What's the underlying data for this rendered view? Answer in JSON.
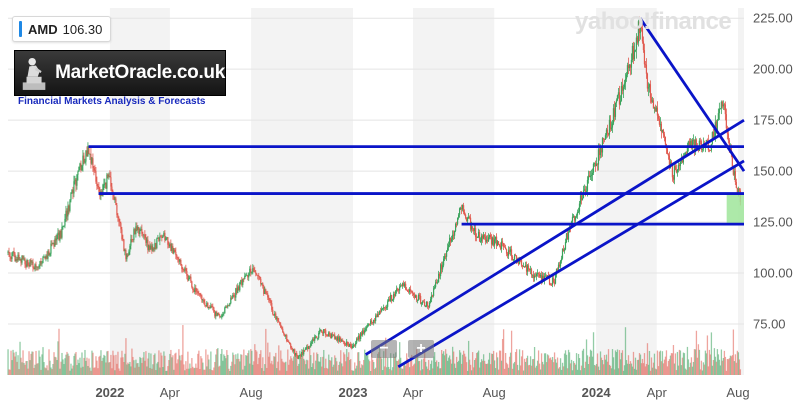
{
  "ticker": {
    "symbol": "AMD",
    "price": "106.30"
  },
  "branding": {
    "logo_text": "MarketOracle.co.uk",
    "tagline": "Financial Markets Analysis & Forecasts",
    "watermark": "yahoo!finance"
  },
  "controls": {
    "zoom_out_icon": "minus-icon",
    "zoom_in_icon": "plus-icon",
    "zoom_out": "−",
    "zoom_in": "+"
  },
  "colors": {
    "up": "#3aa35c",
    "down": "#e05a4f",
    "trendline": "#0a14c8",
    "zone": "#9fe59a",
    "axis_text": "#555555"
  },
  "chart_data": {
    "type": "candlestick",
    "title": "",
    "xlabel": "",
    "ylabel": "",
    "ylim": [
      50,
      230
    ],
    "x_range": [
      "2021-08-01",
      "2024-08-10"
    ],
    "grid": "alternating vertical bands",
    "legend": "none",
    "y_ticks": [
      75,
      100,
      125,
      150,
      175,
      200,
      225
    ],
    "y_tick_labels": [
      "75.00",
      "100.00",
      "125.00",
      "150.00",
      "175.00",
      "200.00",
      "225.00"
    ],
    "x_ticks": [
      {
        "date": "2022-01-01",
        "label": "2022",
        "bold": true
      },
      {
        "date": "2022-04-01",
        "label": "Apr",
        "bold": false
      },
      {
        "date": "2022-08-01",
        "label": "Aug",
        "bold": false
      },
      {
        "date": "2023-01-01",
        "label": "2023",
        "bold": true
      },
      {
        "date": "2023-04-01",
        "label": "Apr",
        "bold": false
      },
      {
        "date": "2023-08-01",
        "label": "Aug",
        "bold": false
      },
      {
        "date": "2024-01-01",
        "label": "2024",
        "bold": true
      },
      {
        "date": "2024-04-01",
        "label": "Apr",
        "bold": false
      },
      {
        "date": "2024-08-01",
        "label": "Aug",
        "bold": false
      }
    ],
    "price_path": [
      [
        "2021-08-01",
        110
      ],
      [
        "2021-09-15",
        102
      ],
      [
        "2021-10-20",
        120
      ],
      [
        "2021-11-15",
        150
      ],
      [
        "2021-11-30",
        162
      ],
      [
        "2021-12-15",
        138
      ],
      [
        "2022-01-01",
        148
      ],
      [
        "2022-01-25",
        108
      ],
      [
        "2022-02-10",
        124
      ],
      [
        "2022-03-01",
        112
      ],
      [
        "2022-03-25",
        118
      ],
      [
        "2022-05-15",
        88
      ],
      [
        "2022-06-15",
        78
      ],
      [
        "2022-07-15",
        94
      ],
      [
        "2022-08-05",
        103
      ],
      [
        "2022-09-15",
        72
      ],
      [
        "2022-10-10",
        58
      ],
      [
        "2022-11-15",
        72
      ],
      [
        "2022-12-30",
        64
      ],
      [
        "2023-01-20",
        73
      ],
      [
        "2023-02-15",
        82
      ],
      [
        "2023-03-15",
        95
      ],
      [
        "2023-04-25",
        83
      ],
      [
        "2023-05-20",
        110
      ],
      [
        "2023-06-13",
        132
      ],
      [
        "2023-07-05",
        118
      ],
      [
        "2023-08-01",
        116
      ],
      [
        "2023-09-10",
        105
      ],
      [
        "2023-10-05",
        98
      ],
      [
        "2023-10-30",
        96
      ],
      [
        "2023-11-20",
        120
      ],
      [
        "2023-12-20",
        145
      ],
      [
        "2024-01-25",
        175
      ],
      [
        "2024-02-25",
        208
      ],
      [
        "2024-03-07",
        222
      ],
      [
        "2024-03-15",
        198
      ],
      [
        "2024-04-01",
        178
      ],
      [
        "2024-04-25",
        148
      ],
      [
        "2024-05-20",
        162
      ],
      [
        "2024-06-20",
        162
      ],
      [
        "2024-07-10",
        184
      ],
      [
        "2024-07-25",
        150
      ],
      [
        "2024-08-05",
        135
      ]
    ],
    "annotations": {
      "horizontal_lines": [
        {
          "from": "2021-11-30",
          "to": "2024-08-10",
          "y": 162
        },
        {
          "from": "2021-12-15",
          "to": "2024-08-10",
          "y": 139
        },
        {
          "from": "2023-06-13",
          "to": "2024-08-10",
          "y": 124
        }
      ],
      "trend_lines": [
        {
          "from": [
            "2023-01-20",
            60
          ],
          "to": [
            "2024-08-10",
            175
          ]
        },
        {
          "from": [
            "2023-03-10",
            54
          ],
          "to": [
            "2024-08-10",
            155
          ]
        },
        {
          "from": [
            "2024-03-07",
            225
          ],
          "to": [
            "2024-08-10",
            150
          ]
        }
      ],
      "zone": {
        "from": "2024-07-15",
        "to": "2024-08-10",
        "y_low": 124,
        "y_high": 139
      }
    }
  }
}
